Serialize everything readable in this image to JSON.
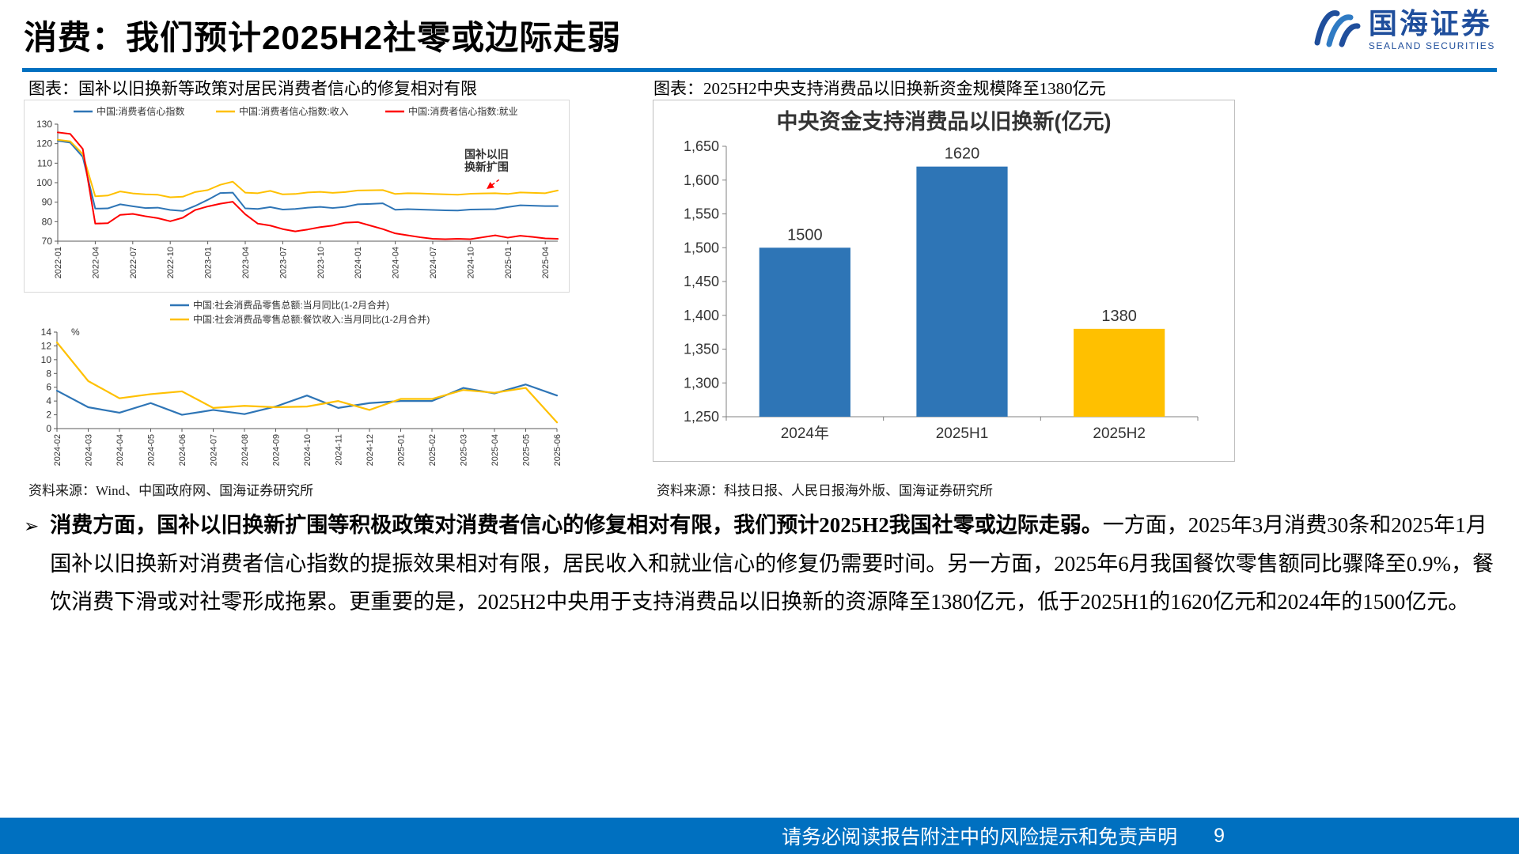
{
  "page": {
    "title": "消费：我们预计2025H2社零或边际走弱",
    "footer_text": "请务必阅读报告附注中的风险提示和免责声明",
    "page_number": "9"
  },
  "logo": {
    "name": "国海证券",
    "subtitle": "SEALAND SECURITIES",
    "icon": "sealand-wave-icon"
  },
  "left_panel": {
    "caption": "图表：国补以旧换新等政策对居民消费者信心的修复相对有限",
    "source": "资料来源：Wind、中国政府网、国海证券研究所"
  },
  "right_panel": {
    "caption": "图表：2025H2中央支持消费品以旧换新资金规模降至1380亿元",
    "source": "资料来源：科技日报、人民日报海外版、国海证券研究所"
  },
  "body_text": {
    "bullet": "➢",
    "bold_part": "消费方面，国补以旧换新扩围等积极政策对消费者信心的修复相对有限，我们预计2025H2我国社零或边际走弱。",
    "regular_part": "一方面，2025年3月消费30条和2025年1月国补以旧换新对消费者信心指数的提振效果相对有限，居民收入和就业信心的修复仍需要时间。另一方面，2025年6月我国餐饮零售额同比骤降至0.9%，餐饮消费下滑或对社零形成拖累。更重要的是，2025H2中央用于支持消费品以旧换新的资源降至1380亿元，低于2025H1的1620亿元和2024年的1500亿元。"
  },
  "colors": {
    "accent_blue": "#0070C0",
    "line_blue": "#2E75B6",
    "line_yellow": "#FFC000",
    "line_red": "#FF0000",
    "bar_blue": "#2E75B6",
    "bar_gold": "#FFC000",
    "logo_blue": "#1F4E9C"
  },
  "chart_data": [
    {
      "type": "line",
      "title": "",
      "x": [
        "2022-01",
        "2022-02",
        "2022-03",
        "2022-04",
        "2022-05",
        "2022-06",
        "2022-07",
        "2022-08",
        "2022-09",
        "2022-10",
        "2022-11",
        "2022-12",
        "2023-01",
        "2023-02",
        "2023-03",
        "2023-04",
        "2023-05",
        "2023-06",
        "2023-07",
        "2023-08",
        "2023-09",
        "2023-10",
        "2023-11",
        "2023-12",
        "2024-01",
        "2024-02",
        "2024-03",
        "2024-04",
        "2024-05",
        "2024-06",
        "2024-07",
        "2024-08",
        "2024-09",
        "2024-10",
        "2024-11",
        "2024-12",
        "2025-01",
        "2025-02",
        "2025-03",
        "2025-04",
        "2025-05"
      ],
      "x_tick_step": 3,
      "ylim": [
        70,
        130
      ],
      "y_step": 10,
      "grid": false,
      "legend_position": "top",
      "series": [
        {
          "name": "中国:消费者信心指数",
          "color": "#2E75B6",
          "values": [
            121.5,
            120.5,
            113.2,
            86.7,
            86.8,
            88.9,
            87.9,
            87.0,
            87.2,
            86.0,
            85.5,
            88.1,
            91.2,
            94.7,
            94.9,
            86.8,
            86.5,
            87.5,
            86.2,
            86.5,
            87.2,
            87.6,
            87.0,
            87.6,
            88.9,
            89.1,
            89.4,
            86.1,
            86.4,
            86.2,
            86.0,
            85.8,
            85.7,
            86.2,
            86.3,
            86.4,
            87.5,
            88.4,
            88.2,
            88.0,
            88.0
          ]
        },
        {
          "name": "中国:消费者信心指数:收入",
          "color": "#FFC000",
          "values": [
            122.0,
            121.2,
            114.7,
            93.0,
            93.4,
            95.5,
            94.5,
            94.0,
            93.8,
            92.5,
            92.8,
            95.2,
            96.2,
            98.9,
            100.5,
            94.9,
            94.6,
            95.8,
            94.0,
            94.2,
            95.0,
            95.3,
            94.8,
            95.2,
            96.0,
            96.1,
            96.2,
            94.2,
            94.6,
            94.5,
            94.2,
            94.0,
            93.8,
            94.3,
            94.5,
            94.6,
            94.2,
            95.0,
            94.8,
            94.6,
            96.0
          ]
        },
        {
          "name": "中国:消费者信心指数:就业",
          "color": "#FF0000",
          "values": [
            125.8,
            125.0,
            117.3,
            79.0,
            79.2,
            83.5,
            84.0,
            82.8,
            81.8,
            80.2,
            82.0,
            86.0,
            87.8,
            89.2,
            90.2,
            83.8,
            79.0,
            78.0,
            76.2,
            75.0,
            76.0,
            77.2,
            78.0,
            79.5,
            79.8,
            78.0,
            76.2,
            74.0,
            73.0,
            72.0,
            71.2,
            71.0,
            71.2,
            71.0,
            72.0,
            73.0,
            71.8,
            72.8,
            72.2,
            71.4,
            71.2
          ]
        }
      ],
      "annotation": {
        "lines": [
          "国补以旧",
          "换新扩围"
        ],
        "color": "#FF0000"
      }
    },
    {
      "type": "line",
      "title": "",
      "ylabel": "%",
      "x": [
        "2024-02",
        "2024-03",
        "2024-04",
        "2024-05",
        "2024-06",
        "2024-07",
        "2024-08",
        "2024-09",
        "2024-10",
        "2024-11",
        "2024-12",
        "2025-01",
        "2025-02",
        "2025-03",
        "2025-04",
        "2025-05",
        "2025-06"
      ],
      "x_tick_step": 1,
      "ylim": [
        0,
        14
      ],
      "y_step": 2,
      "grid": false,
      "legend_position": "top",
      "series": [
        {
          "name": "中国:社会消费品零售总额:当月同比(1-2月合并)",
          "color": "#2E75B6",
          "values": [
            5.5,
            3.1,
            2.3,
            3.7,
            2.0,
            2.7,
            2.1,
            3.2,
            4.8,
            3.0,
            3.7,
            4.0,
            4.0,
            5.9,
            5.1,
            6.4,
            4.8
          ]
        },
        {
          "name": "中国:社会消费品零售总额:餐饮收入:当月同比(1-2月合并)",
          "color": "#FFC000",
          "values": [
            12.5,
            6.9,
            4.4,
            5.0,
            5.4,
            3.0,
            3.3,
            3.1,
            3.2,
            4.0,
            2.7,
            4.3,
            4.3,
            5.6,
            5.2,
            5.9,
            0.9
          ]
        }
      ]
    },
    {
      "type": "bar",
      "title": "中央资金支持消费品以旧换新(亿元)",
      "categories": [
        "2024年",
        "2025H1",
        "2025H2"
      ],
      "values": [
        1500,
        1620,
        1380
      ],
      "value_labels": [
        "1500",
        "1620",
        "1380"
      ],
      "bar_colors": [
        "#2E75B6",
        "#2E75B6",
        "#FFC000"
      ],
      "ylim": [
        1250,
        1650
      ],
      "y_step": 50,
      "grid": false
    }
  ]
}
